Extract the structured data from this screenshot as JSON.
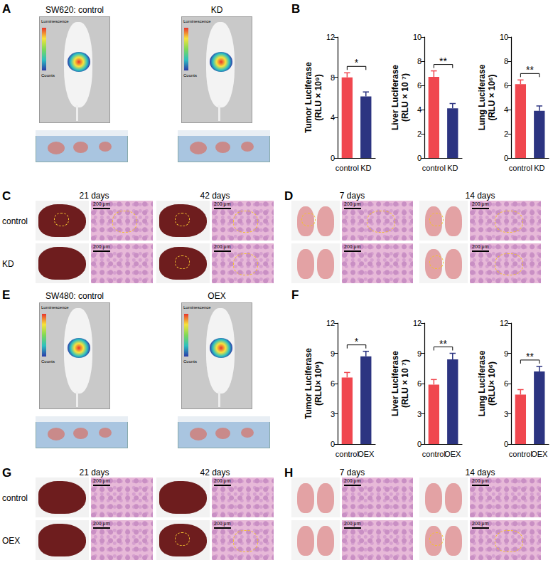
{
  "chart_data": [
    {
      "type": "bar",
      "y_label": "Tumor Luciferase\n(RLU × 10⁹)",
      "categories": [
        "control",
        "KD"
      ],
      "values": [
        8.0,
        6.1
      ],
      "errors": [
        0.45,
        0.45
      ],
      "colors": [
        "#f0474f",
        "#2c3481"
      ],
      "ylim": [
        0,
        12
      ],
      "yticks": [
        0,
        4,
        8,
        12
      ],
      "grid": false,
      "annotation": "*"
    },
    {
      "type": "bar",
      "y_label": "Liver Luciferase\n(RLU × 10 ⁷)",
      "categories": [
        "control",
        "KD"
      ],
      "values": [
        6.7,
        4.1
      ],
      "errors": [
        0.5,
        0.4
      ],
      "colors": [
        "#f0474f",
        "#2c3481"
      ],
      "ylim": [
        0,
        10
      ],
      "yticks": [
        0,
        2,
        4,
        6,
        8,
        10
      ],
      "grid": false,
      "annotation": "**"
    },
    {
      "type": "bar",
      "y_label": "Lung Luciferase\n(RLU × 10⁶)",
      "categories": [
        "control",
        "KD"
      ],
      "values": [
        6.1,
        3.9
      ],
      "errors": [
        0.35,
        0.4
      ],
      "colors": [
        "#f0474f",
        "#2c3481"
      ],
      "ylim": [
        0,
        10
      ],
      "yticks": [
        0,
        2,
        4,
        6,
        8,
        10
      ],
      "grid": false,
      "annotation": "**"
    },
    {
      "type": "bar",
      "y_label": "Tumor Luciferase\n(RLU× 10⁹)",
      "categories": [
        "control",
        "OEX"
      ],
      "values": [
        6.6,
        8.7
      ],
      "errors": [
        0.5,
        0.5
      ],
      "colors": [
        "#f0474f",
        "#2c3481"
      ],
      "ylim": [
        0,
        12
      ],
      "yticks": [
        0,
        3,
        6,
        9,
        12
      ],
      "grid": false,
      "annotation": "*"
    },
    {
      "type": "bar",
      "y_label": "Liver Luciferase\n(RLU × 10 ⁷)",
      "categories": [
        "control",
        "OEX"
      ],
      "values": [
        5.9,
        8.4
      ],
      "errors": [
        0.5,
        0.6
      ],
      "colors": [
        "#f0474f",
        "#2c3481"
      ],
      "ylim": [
        0,
        12
      ],
      "yticks": [
        0,
        3,
        6,
        9,
        12
      ],
      "grid": false,
      "annotation": "**"
    },
    {
      "type": "bar",
      "y_label": "Lung Luciferase\n(RLU× 10⁶)",
      "categories": [
        "control",
        "OEX"
      ],
      "values": [
        4.9,
        7.2
      ],
      "errors": [
        0.5,
        0.5
      ],
      "colors": [
        "#f0474f",
        "#2c3481"
      ],
      "ylim": [
        0,
        12
      ],
      "yticks": [
        0,
        3,
        6,
        9,
        12
      ],
      "grid": false,
      "annotation": "**"
    }
  ],
  "figure": {
    "A": {
      "label": "A",
      "captions": [
        "SW620: control",
        "KD"
      ],
      "colorbar": [
        "Luminescence",
        "Counts"
      ]
    },
    "B": {
      "label": "B"
    },
    "C": {
      "label": "C",
      "columns": [
        "21 days",
        "42 days"
      ],
      "rows": [
        "control",
        "KD"
      ],
      "scale_bar": "200 μm"
    },
    "D": {
      "label": "D",
      "columns": [
        "7 days",
        "14 days"
      ],
      "scale_bar": "200 μm"
    },
    "E": {
      "label": "E",
      "captions": [
        "SW480: control",
        "OEX"
      ],
      "colorbar": [
        "Luminescence",
        "Counts"
      ]
    },
    "F": {
      "label": "F"
    },
    "G": {
      "label": "G",
      "columns": [
        "21 days",
        "42 days"
      ],
      "rows": [
        "control",
        "OEX"
      ],
      "scale_bar": "200 μm"
    },
    "H": {
      "label": "H",
      "columns": [
        "7 days",
        "14 days"
      ],
      "scale_bar": "200 μm"
    }
  }
}
